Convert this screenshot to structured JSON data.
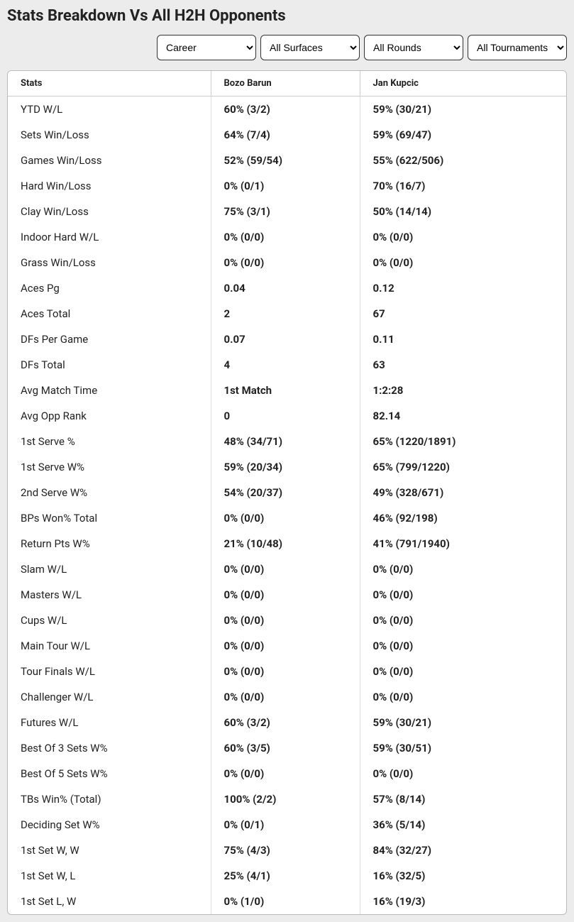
{
  "title": "Stats Breakdown Vs All H2H Opponents",
  "filters": {
    "time": "Career",
    "surface": "All Surfaces",
    "round": "All Rounds",
    "tournament": "All Tournaments"
  },
  "columns": {
    "stats": "Stats",
    "player1": "Bozo Barun",
    "player2": "Jan Kupcic"
  },
  "rows": [
    {
      "stat": "YTD W/L",
      "p1": "60% (3/2)",
      "p2": "59% (30/21)"
    },
    {
      "stat": "Sets Win/Loss",
      "p1": "64% (7/4)",
      "p2": "59% (69/47)"
    },
    {
      "stat": "Games Win/Loss",
      "p1": "52% (59/54)",
      "p2": "55% (622/506)"
    },
    {
      "stat": "Hard Win/Loss",
      "p1": "0% (0/1)",
      "p2": "70% (16/7)"
    },
    {
      "stat": "Clay Win/Loss",
      "p1": "75% (3/1)",
      "p2": "50% (14/14)"
    },
    {
      "stat": "Indoor Hard W/L",
      "p1": "0% (0/0)",
      "p2": "0% (0/0)"
    },
    {
      "stat": "Grass Win/Loss",
      "p1": "0% (0/0)",
      "p2": "0% (0/0)"
    },
    {
      "stat": "Aces Pg",
      "p1": "0.04",
      "p2": "0.12"
    },
    {
      "stat": "Aces Total",
      "p1": "2",
      "p2": "67"
    },
    {
      "stat": "DFs Per Game",
      "p1": "0.07",
      "p2": "0.11"
    },
    {
      "stat": "DFs Total",
      "p1": "4",
      "p2": "63"
    },
    {
      "stat": "Avg Match Time",
      "p1": "1st Match",
      "p2": "1:2:28"
    },
    {
      "stat": "Avg Opp Rank",
      "p1": "0",
      "p2": "82.14"
    },
    {
      "stat": "1st Serve %",
      "p1": "48% (34/71)",
      "p2": "65% (1220/1891)"
    },
    {
      "stat": "1st Serve W%",
      "p1": "59% (20/34)",
      "p2": "65% (799/1220)"
    },
    {
      "stat": "2nd Serve W%",
      "p1": "54% (20/37)",
      "p2": "49% (328/671)"
    },
    {
      "stat": "BPs Won% Total",
      "p1": "0% (0/0)",
      "p2": "46% (92/198)"
    },
    {
      "stat": "Return Pts W%",
      "p1": "21% (10/48)",
      "p2": "41% (791/1940)"
    },
    {
      "stat": "Slam W/L",
      "p1": "0% (0/0)",
      "p2": "0% (0/0)"
    },
    {
      "stat": "Masters W/L",
      "p1": "0% (0/0)",
      "p2": "0% (0/0)"
    },
    {
      "stat": "Cups W/L",
      "p1": "0% (0/0)",
      "p2": "0% (0/0)"
    },
    {
      "stat": "Main Tour W/L",
      "p1": "0% (0/0)",
      "p2": "0% (0/0)"
    },
    {
      "stat": "Tour Finals W/L",
      "p1": "0% (0/0)",
      "p2": "0% (0/0)"
    },
    {
      "stat": "Challenger W/L",
      "p1": "0% (0/0)",
      "p2": "0% (0/0)"
    },
    {
      "stat": "Futures W/L",
      "p1": "60% (3/2)",
      "p2": "59% (30/21)"
    },
    {
      "stat": "Best Of 3 Sets W%",
      "p1": "60% (3/5)",
      "p2": "59% (30/51)"
    },
    {
      "stat": "Best Of 5 Sets W%",
      "p1": "0% (0/0)",
      "p2": "0% (0/0)"
    },
    {
      "stat": "TBs Win% (Total)",
      "p1": "100% (2/2)",
      "p2": "57% (8/14)"
    },
    {
      "stat": "Deciding Set W%",
      "p1": "0% (0/1)",
      "p2": "36% (5/14)"
    },
    {
      "stat": "1st Set W, W",
      "p1": "75% (4/3)",
      "p2": "84% (32/27)"
    },
    {
      "stat": "1st Set W, L",
      "p1": "25% (4/1)",
      "p2": "16% (32/5)"
    },
    {
      "stat": "1st Set L, W",
      "p1": "0% (1/0)",
      "p2": "16% (19/3)"
    }
  ]
}
